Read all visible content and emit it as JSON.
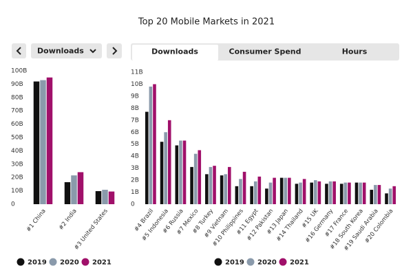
{
  "title": "Top 20 Mobile Markets in 2021",
  "controls": {
    "dropdown": "Downloads"
  },
  "tabs": [
    "Downloads",
    "Consumer Spend",
    "Hours"
  ],
  "chart_data": [
    {
      "type": "bar",
      "categories": [
        "#1 China",
        "#2 India",
        "#3 United States"
      ],
      "series": [
        {
          "name": "2019",
          "color": "#111111",
          "values": [
            92,
            16.5,
            9.8
          ]
        },
        {
          "name": "2020",
          "color": "#8a9aab",
          "values": [
            93,
            21.6,
            10.8
          ]
        },
        {
          "name": "2021",
          "color": "#a0106a",
          "values": [
            95,
            24,
            9.5
          ]
        }
      ],
      "ylim": [
        0,
        100
      ],
      "yticks": [
        0,
        {
          "value": 10,
          "label": "10B"
        },
        {
          "value": 20,
          "label": "20B"
        },
        {
          "value": 30,
          "label": "30B"
        },
        {
          "value": 40,
          "label": "40B"
        },
        {
          "value": 50,
          "label": "50B"
        },
        {
          "value": 60,
          "label": "60B"
        },
        {
          "value": 70,
          "label": "70B"
        },
        {
          "value": 80,
          "label": "80B"
        },
        {
          "value": 90,
          "label": "90B"
        },
        {
          "value": 100,
          "label": "100B"
        }
      ],
      "grid": false
    },
    {
      "type": "bar",
      "categories": [
        "#4 Brazil",
        "#5 Indonesia",
        "#6 Russia",
        "#7 Mexico",
        "#8 Turkey",
        "#9 Vietnam",
        "#10 Philippines",
        "#11 Egypt",
        "#12 Pakistan",
        "#13 Japan",
        "#14 Thailand",
        "#15 UK",
        "#16 Germany",
        "#17 France",
        "#18 South Korea",
        "#19 Saudi Arabia",
        "#20 Colombia"
      ],
      "series": [
        {
          "name": "2019",
          "color": "#111111",
          "values": [
            7.7,
            5.2,
            4.9,
            3.1,
            2.5,
            2.4,
            1.5,
            1.5,
            1.3,
            2.2,
            1.7,
            1.8,
            1.7,
            1.7,
            1.8,
            1.2,
            0.9
          ]
        },
        {
          "name": "2020",
          "color": "#8a9aab",
          "values": [
            9.8,
            6.0,
            5.3,
            4.2,
            3.1,
            2.5,
            2.1,
            1.9,
            1.8,
            2.2,
            1.8,
            2.0,
            1.9,
            1.8,
            1.8,
            1.6,
            1.3
          ]
        },
        {
          "name": "2021",
          "color": "#a0106a",
          "values": [
            10.0,
            7.0,
            5.3,
            4.5,
            3.2,
            3.1,
            2.7,
            2.3,
            2.2,
            2.2,
            2.1,
            1.9,
            1.9,
            1.8,
            1.8,
            1.6,
            1.5
          ]
        }
      ],
      "ylim": [
        0,
        11
      ],
      "yticks": [
        0,
        {
          "value": 1,
          "label": "1B"
        },
        {
          "value": 2,
          "label": "2B"
        },
        {
          "value": 3,
          "label": "3B"
        },
        {
          "value": 4,
          "label": "4B"
        },
        {
          "value": 5,
          "label": "5B"
        },
        {
          "value": 6,
          "label": "6B"
        },
        {
          "value": 7,
          "label": "7B"
        },
        {
          "value": 8,
          "label": "8B"
        },
        {
          "value": 9,
          "label": "9B"
        },
        {
          "value": 10,
          "label": "10B"
        },
        {
          "value": 11,
          "label": "11B"
        }
      ],
      "grid": false
    }
  ]
}
